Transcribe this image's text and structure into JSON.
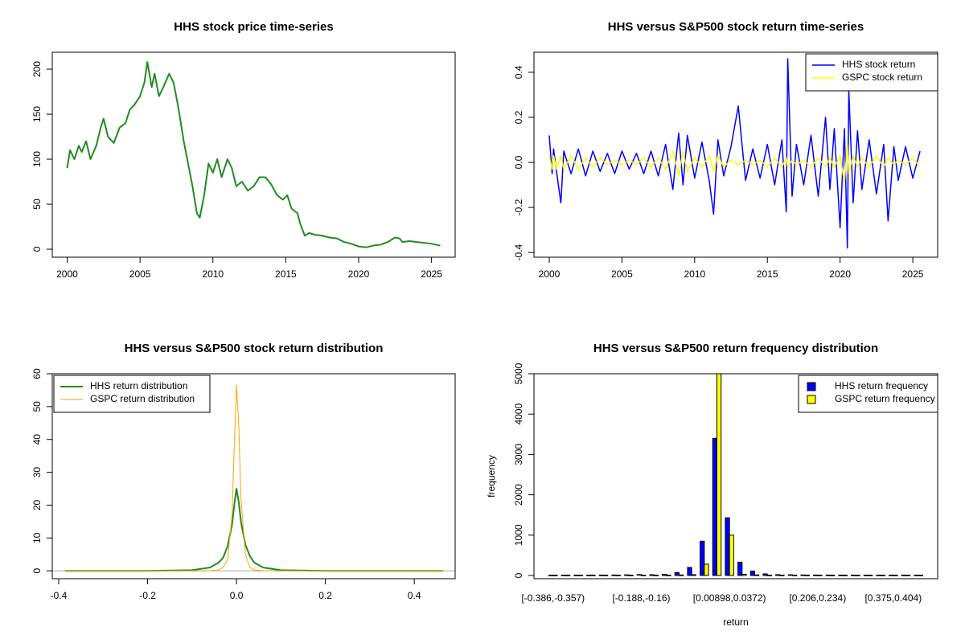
{
  "chart_data": [
    {
      "type": "line",
      "title": "HHS stock price time-series",
      "x": [
        2000,
        2000.2,
        2000.5,
        2000.8,
        2001,
        2001.3,
        2001.6,
        2002,
        2002.3,
        2002.5,
        2002.8,
        2003.2,
        2003.6,
        2004,
        2004.3,
        2004.6,
        2005,
        2005.3,
        2005.5,
        2005.8,
        2006,
        2006.3,
        2006.6,
        2007,
        2007.3,
        2007.6,
        2008,
        2008.3,
        2008.6,
        2008.9,
        2009.1,
        2009.4,
        2009.7,
        2010,
        2010.3,
        2010.6,
        2011,
        2011.3,
        2011.6,
        2012,
        2012.4,
        2012.8,
        2013.2,
        2013.6,
        2014,
        2014.4,
        2014.8,
        2015.1,
        2015.4,
        2015.8,
        2016,
        2016.3,
        2016.6,
        2017,
        2017.5,
        2018,
        2018.5,
        2019,
        2019.5,
        2020,
        2020.5,
        2021,
        2021.5,
        2022,
        2022.5,
        2022.8,
        2023,
        2023.5,
        2024,
        2024.5,
        2025,
        2025.6
      ],
      "series": [
        {
          "name": "HHS stock price",
          "color": "#228b22",
          "values": [
            90,
            110,
            100,
            115,
            108,
            120,
            100,
            115,
            135,
            145,
            125,
            118,
            135,
            140,
            155,
            160,
            170,
            185,
            208,
            180,
            195,
            170,
            180,
            195,
            185,
            160,
            120,
            95,
            70,
            40,
            35,
            60,
            95,
            85,
            100,
            80,
            100,
            90,
            70,
            75,
            65,
            70,
            80,
            80,
            72,
            60,
            55,
            60,
            45,
            40,
            28,
            15,
            18,
            16,
            15,
            13,
            12,
            8,
            6,
            3,
            2,
            4,
            5,
            8,
            13,
            12,
            8,
            9,
            8,
            7,
            6,
            4
          ]
        }
      ],
      "xlim": [
        1998.98,
        2026.62
      ],
      "xticks": [
        2000,
        2005,
        2010,
        2015,
        2020,
        2025
      ],
      "ylim": [
        -8.9,
        218.8
      ],
      "yticks": [
        0,
        50,
        100,
        150,
        200
      ]
    },
    {
      "type": "line",
      "title": "HHS versus S&P500 stock return time-series",
      "x": [
        2000,
        2000.2,
        2000.3,
        2000.5,
        2000.8,
        2001,
        2001.5,
        2002,
        2002.5,
        2003,
        2003.5,
        2004,
        2004.5,
        2005,
        2005.5,
        2006,
        2006.5,
        2007,
        2007.5,
        2008,
        2008.5,
        2008.9,
        2009.2,
        2009.5,
        2010,
        2010.5,
        2011,
        2011.3,
        2011.6,
        2012,
        2012.5,
        2013,
        2013.5,
        2014,
        2014.5,
        2015,
        2015.5,
        2016,
        2016.3,
        2016.4,
        2016.7,
        2017,
        2017.5,
        2018,
        2018.5,
        2019,
        2019.3,
        2019.6,
        2020,
        2020.3,
        2020.5,
        2020.6,
        2020.9,
        2021.2,
        2021.5,
        2022,
        2022.5,
        2023,
        2023.3,
        2023.7,
        2024,
        2024.5,
        2025,
        2025.5
      ],
      "series": [
        {
          "name": "HHS stock return",
          "color": "#0000ff",
          "values": [
            0.12,
            -0.05,
            0.06,
            -0.04,
            -0.18,
            0.05,
            -0.05,
            0.06,
            -0.06,
            0.05,
            -0.04,
            0.04,
            -0.05,
            0.05,
            -0.03,
            0.04,
            -0.05,
            0.05,
            -0.06,
            0.08,
            -0.12,
            0.13,
            -0.1,
            0.12,
            -0.07,
            0.09,
            -0.08,
            -0.23,
            0.1,
            -0.06,
            0.07,
            0.25,
            -0.08,
            0.06,
            -0.07,
            0.08,
            -0.1,
            0.1,
            -0.22,
            0.46,
            -0.15,
            0.08,
            -0.1,
            0.12,
            -0.15,
            0.2,
            -0.12,
            0.15,
            -0.29,
            0.15,
            -0.38,
            0.32,
            -0.18,
            0.14,
            -0.12,
            0.1,
            -0.14,
            0.08,
            -0.26,
            0.07,
            -0.08,
            0.07,
            -0.07,
            0.05
          ]
        },
        {
          "name": "GSPC stock return",
          "color": "#ffff00",
          "values": [
            0.03,
            -0.03,
            0.03,
            -0.03,
            0.03,
            -0.03,
            0.03,
            -0.03,
            0.02,
            -0.02,
            0.02,
            -0.01,
            0.01,
            -0.01,
            0.01,
            -0.01,
            0.02,
            -0.02,
            0.02,
            -0.03,
            0.05,
            -0.06,
            0.05,
            -0.04,
            0.02,
            -0.02,
            0.03,
            -0.04,
            0.03,
            -0.02,
            0.01,
            -0.01,
            0.01,
            -0.01,
            0.01,
            -0.02,
            0.02,
            -0.02,
            0.02,
            -0.02,
            0.01,
            -0.01,
            0.01,
            -0.02,
            0.02,
            -0.02,
            0.02,
            -0.02,
            0.03,
            -0.09,
            0.08,
            -0.05,
            0.03,
            -0.02,
            0.02,
            -0.02,
            0.03,
            -0.02,
            0.02,
            -0.01,
            0.01,
            -0.01,
            0.02,
            -0.02
          ]
        }
      ],
      "xlim": [
        1998.95,
        2026.71
      ],
      "xticks": [
        2000,
        2005,
        2010,
        2015,
        2020,
        2025
      ],
      "ylim": [
        -0.421,
        0.489
      ],
      "yticks": [
        -0.4,
        -0.2,
        {
          "value": 0,
          "label": "0.0"
        },
        0.2,
        0.4
      ],
      "legend": "topright"
    },
    {
      "type": "line",
      "title": "HHS versus S&P500 stock return distribution",
      "x": [
        -0.386,
        -0.2,
        -0.1,
        -0.06,
        -0.04,
        -0.03,
        -0.02,
        -0.01,
        -0.005,
        0,
        0.005,
        0.01,
        0.02,
        0.03,
        0.04,
        0.06,
        0.1,
        0.2,
        0.465
      ],
      "series": [
        {
          "name": "HHS return distribution",
          "color": "#228b22",
          "values": [
            0,
            0,
            0.2,
            1,
            2.5,
            4,
            7.5,
            14,
            20,
            25,
            21,
            15,
            8,
            4.5,
            2.5,
            1,
            0.2,
            0,
            0
          ]
        },
        {
          "name": "GSPC return distribution",
          "color": "#ffa500",
          "values": [
            0,
            0,
            0,
            0.05,
            0.3,
            1,
            3.5,
            17,
            38,
            56.5,
            45,
            22,
            5,
            1,
            0.3,
            0.05,
            0,
            0,
            0
          ]
        }
      ],
      "xlim": [
        -0.4145,
        0.492
      ],
      "xticks": [
        -0.4,
        -0.2,
        {
          "value": 0,
          "label": "0.0"
        },
        0.2,
        0.4
      ],
      "ylim": [
        -2.4,
        60
      ],
      "yticks": [
        0,
        10,
        20,
        30,
        40,
        50,
        60
      ],
      "legend": "topleft"
    },
    {
      "type": "bar",
      "title": "HHS versus S&P500 return frequency distribution",
      "xlabel": "return",
      "ylabel": "frequency",
      "categories": [
        "[-0.386,-0.357)",
        null,
        null,
        null,
        null,
        null,
        null,
        "[-0.188,-0.16)",
        null,
        null,
        null,
        null,
        null,
        null,
        "[0.00898,0.0372)",
        null,
        null,
        null,
        null,
        null,
        null,
        "[0.206,0.234)",
        null,
        null,
        null,
        null,
        null,
        "[0.375,0.404)",
        null,
        null
      ],
      "series": [
        {
          "name": "HHS return frequency",
          "color": "#0000ff",
          "values": [
            2,
            1,
            1,
            2,
            3,
            5,
            8,
            15,
            20,
            30,
            70,
            200,
            850,
            3400,
            1430,
            330,
            110,
            40,
            20,
            10,
            6,
            4,
            3,
            2,
            2,
            1,
            1,
            1,
            1,
            1
          ]
        },
        {
          "name": "GSPC return frequency",
          "color": "#ffff00",
          "values": [
            0,
            0,
            0,
            0,
            0,
            0,
            0,
            0,
            0,
            0,
            5,
            20,
            280,
            5100,
            1000,
            30,
            5,
            0,
            0,
            0,
            0,
            0,
            0,
            0,
            0,
            0,
            0,
            0,
            0,
            0
          ]
        }
      ],
      "ylim": [
        -80,
        5000
      ],
      "yticks": [
        0,
        1000,
        2000,
        3000,
        4000,
        5000
      ],
      "legend": "topright"
    }
  ]
}
